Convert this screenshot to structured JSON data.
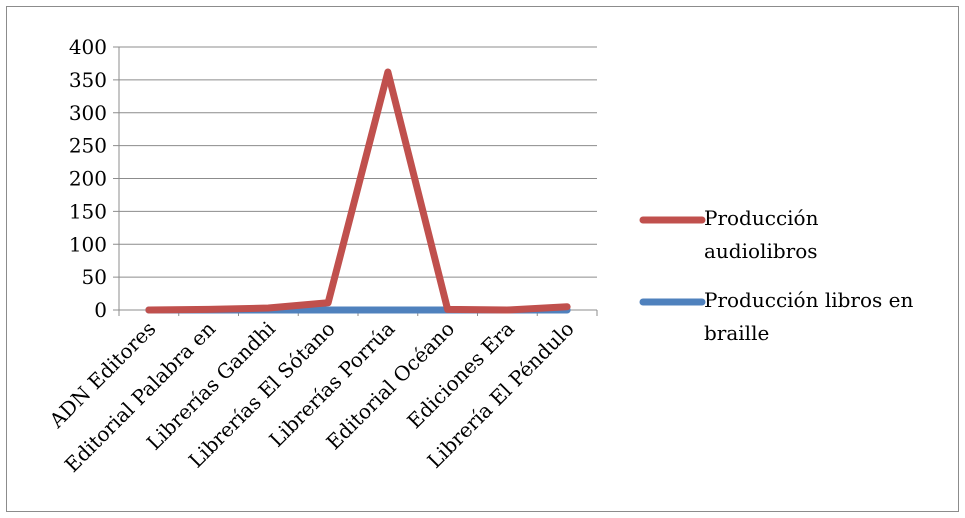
{
  "chart_data": {
    "type": "line",
    "categories": [
      "ADN Editores",
      "Editorial Palabra en",
      "Librerías Gandhi",
      "Librerías El Sótano",
      "Librerías Porrúa",
      "Editorial Océano",
      "Ediciones Era",
      "Librería El Péndulo"
    ],
    "series": [
      {
        "name": "Producción libros en braille",
        "values": [
          0,
          0,
          0,
          0,
          0,
          0,
          0,
          0
        ],
        "color": "#4f81bd"
      },
      {
        "name": "Producción audiolibros",
        "values": [
          0,
          1,
          3,
          11,
          362,
          1,
          0,
          5
        ],
        "color": "#c0504d"
      }
    ],
    "yticks": [
      0,
      50,
      100,
      150,
      200,
      250,
      300,
      350,
      400
    ],
    "ylim": [
      0,
      400
    ],
    "grid": true,
    "legend_position": "right",
    "legend": [
      {
        "lines": [
          "Producción",
          "audiolibros"
        ],
        "color": "#c0504d"
      },
      {
        "lines": [
          "Producción libros en",
          "braille"
        ],
        "color": "#4f81bd"
      }
    ]
  }
}
